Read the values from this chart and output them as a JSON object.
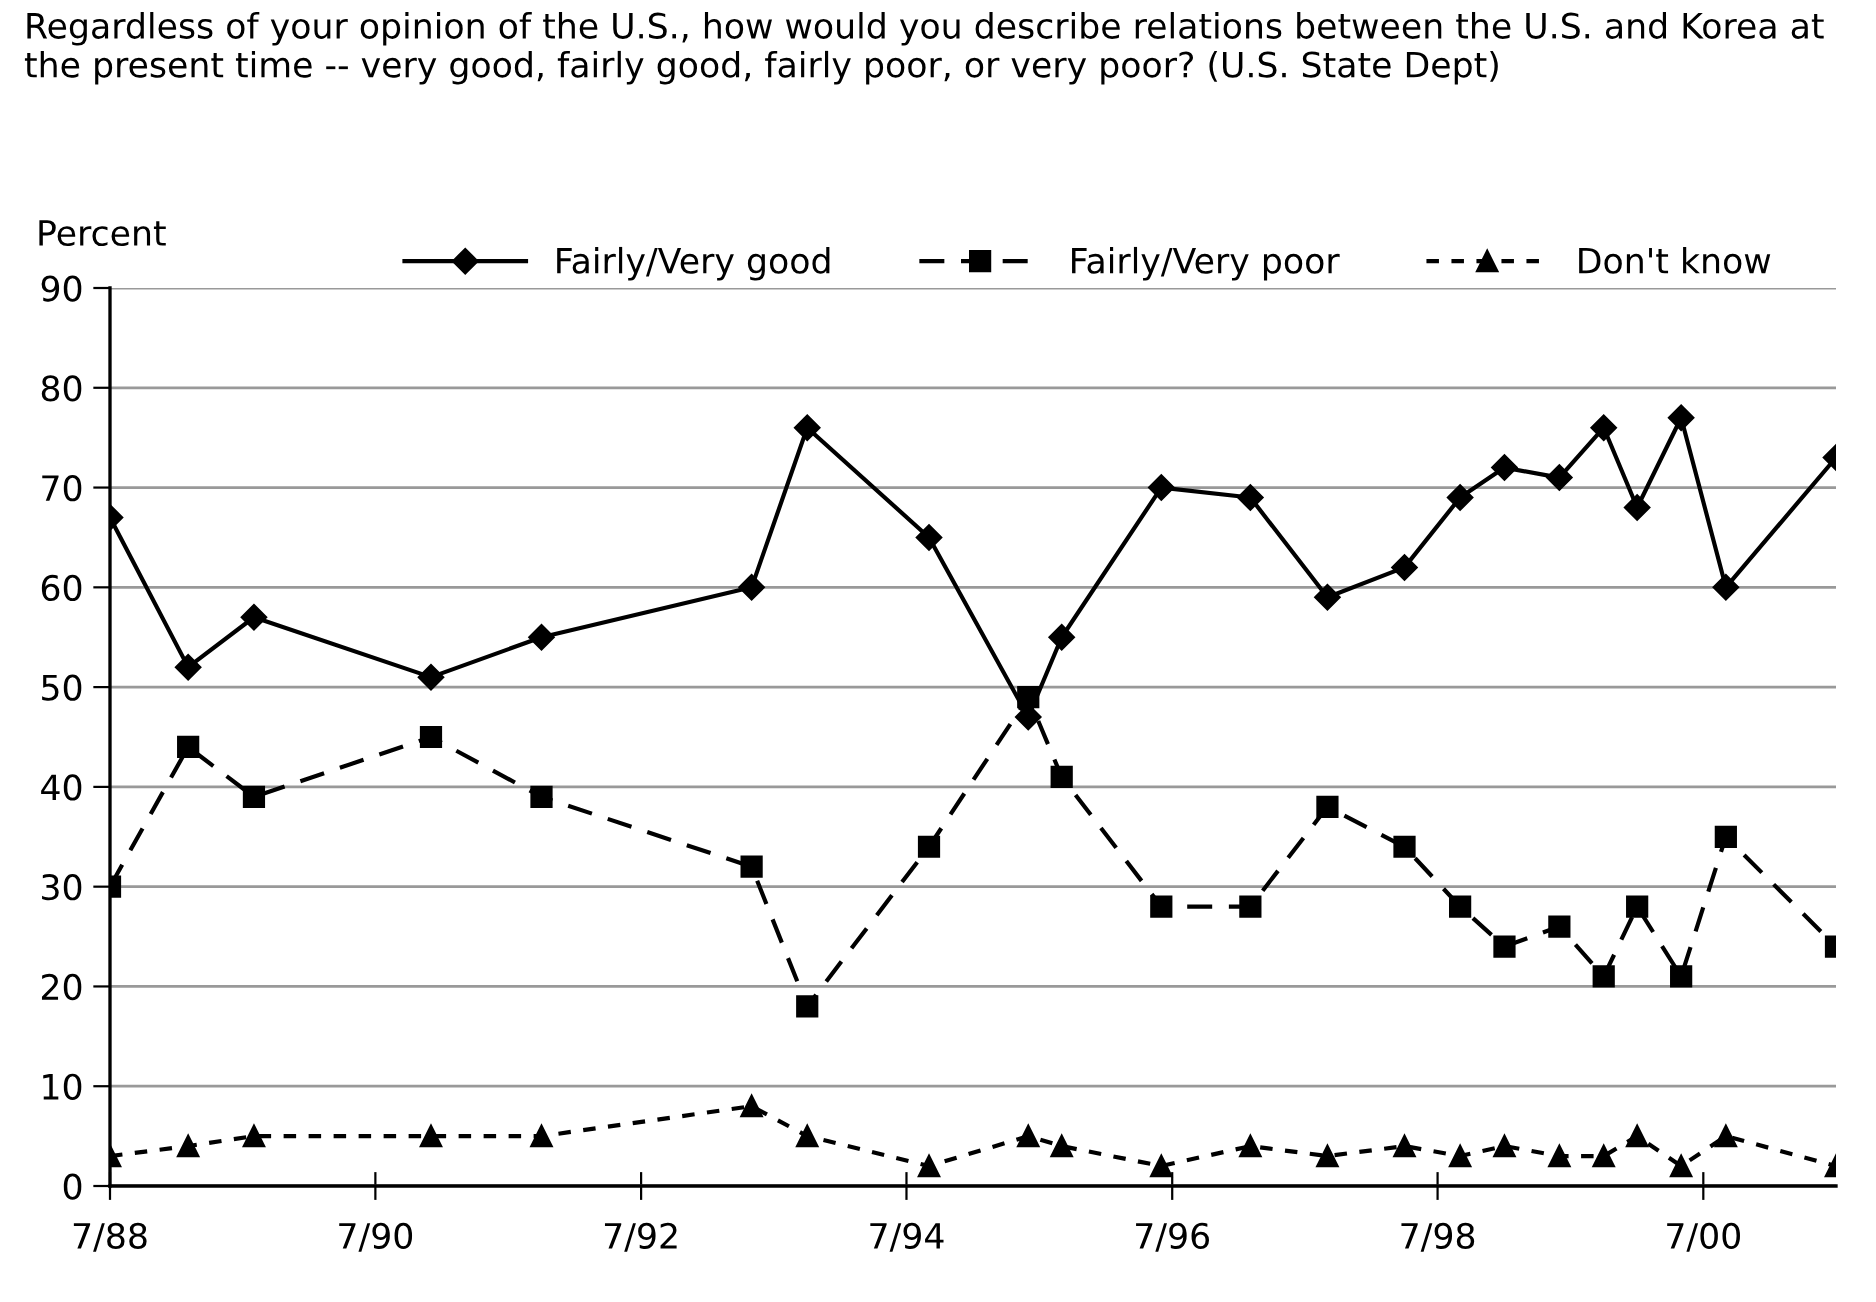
{
  "chart_data": {
    "type": "line",
    "title": "Regardless of your opinion of the U.S., how would you describe relations between the U.S. and Korea at the present time -- very good, fairly good, fairly poor, or very poor? (U.S. State Dept)",
    "ylabel": "Percent",
    "x": [
      "1988-07",
      "1989-02",
      "1989-08",
      "1990-12",
      "1991-10",
      "1993-05",
      "1993-10",
      "1994-09",
      "1995-06",
      "1995-09",
      "1996-06",
      "1997-02",
      "1997-09",
      "1998-04",
      "1998-09",
      "1999-01",
      "1999-06",
      "1999-10",
      "2000-01",
      "2000-05",
      "2000-09",
      "2001-07"
    ],
    "series": [
      {
        "name": "Fairly/Very good",
        "color": "#000000",
        "marker": "diamond",
        "line_style": "solid",
        "values": [
          67,
          52,
          57,
          51,
          55,
          60,
          76,
          65,
          47,
          55,
          70,
          69,
          59,
          62,
          69,
          72,
          71,
          76,
          68,
          77,
          60,
          73
        ]
      },
      {
        "name": "Fairly/Very poor",
        "color": "#000000",
        "marker": "square",
        "line_style": "dashed",
        "values": [
          30,
          44,
          39,
          45,
          39,
          32,
          18,
          34,
          49,
          41,
          28,
          28,
          38,
          34,
          28,
          24,
          26,
          21,
          28,
          21,
          35,
          24
        ]
      },
      {
        "name": "Don't know",
        "color": "#000000",
        "marker": "triangle",
        "line_style": "dotted",
        "values": [
          3,
          4,
          5,
          5,
          5,
          8,
          5,
          2,
          5,
          4,
          2,
          4,
          3,
          4,
          3,
          4,
          3,
          3,
          5,
          2,
          5,
          2
        ]
      }
    ],
    "xlim": [
      "1988-07",
      "2001-07"
    ],
    "xticks": [
      {
        "value": "1988-07",
        "label": "7/88"
      },
      {
        "value": "1990-07",
        "label": "7/90"
      },
      {
        "value": "1992-07",
        "label": "7/92"
      },
      {
        "value": "1994-07",
        "label": "7/94"
      },
      {
        "value": "1996-07",
        "label": "7/96"
      },
      {
        "value": "1998-07",
        "label": "7/98"
      },
      {
        "value": "2000-07",
        "label": "7/00"
      }
    ],
    "ylim": [
      0,
      90
    ],
    "yticks": [
      0,
      10,
      20,
      30,
      40,
      50,
      60,
      70,
      80,
      90
    ],
    "grid": "y",
    "legend": "top"
  }
}
